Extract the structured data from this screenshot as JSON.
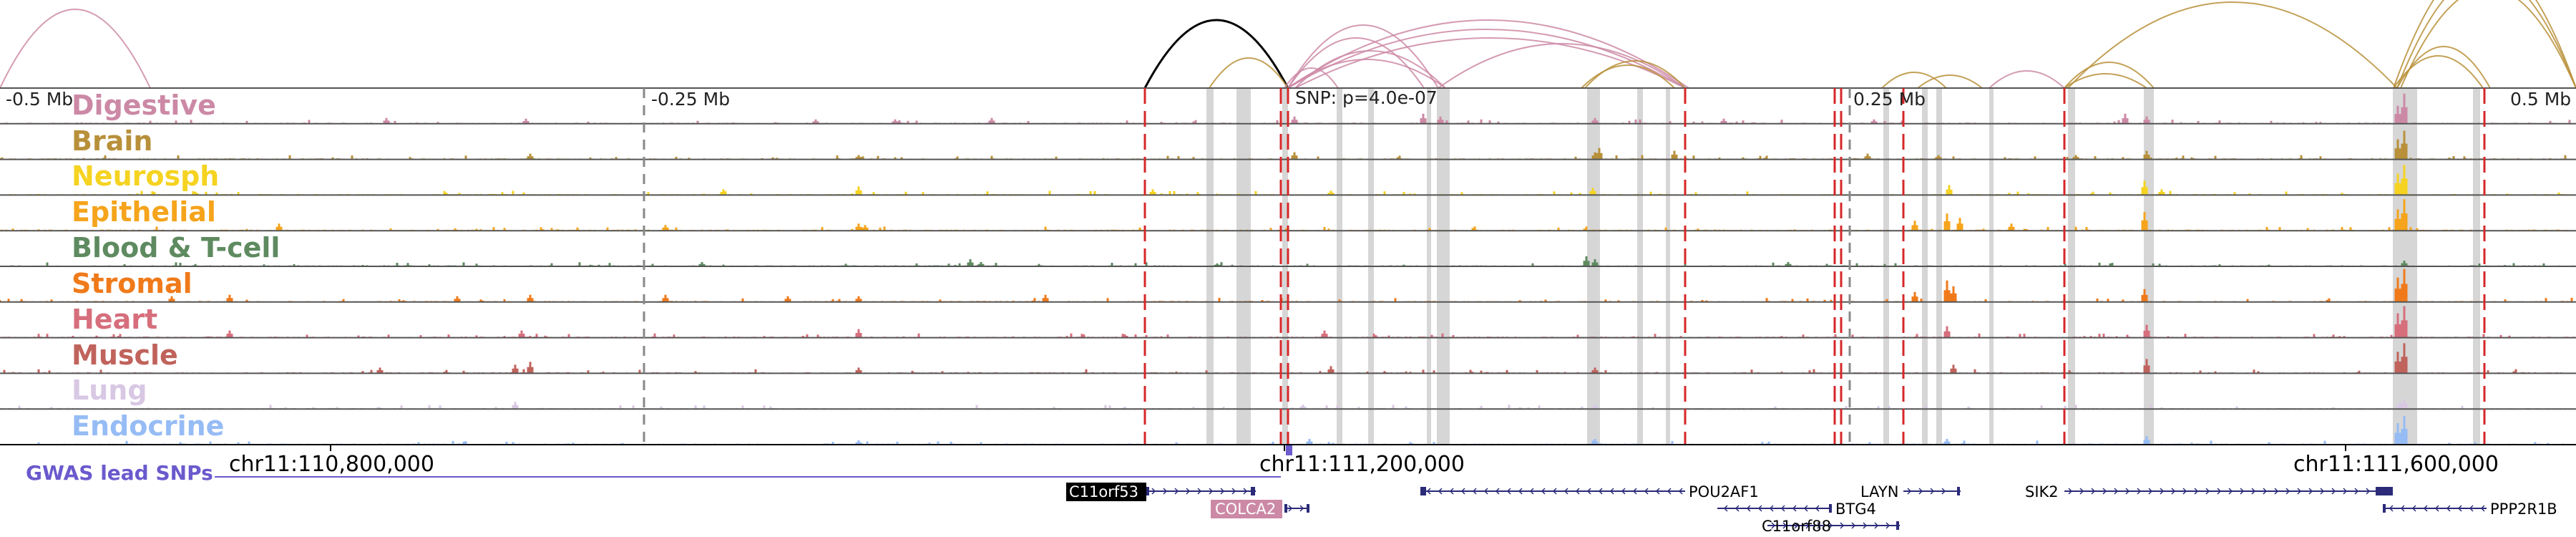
{
  "colors": {
    "snp_line": "#d62728",
    "highlight": "#c8c8c8",
    "divider": "#555555",
    "gwas": "#6a5acd",
    "gene": "#2b2b7a",
    "arc_black": "#000000"
  },
  "scale_ticks": [
    {
      "text": "-0.5 Mb"
    },
    {
      "text": "-0.25 Mb"
    },
    {
      "text": "0.25 Mb"
    },
    {
      "text": "0.5 Mb"
    }
  ],
  "snp_label": "SNP: p=4.0e-07",
  "tracks": [
    {
      "name": "Digestive",
      "color": "#cc89a6"
    },
    {
      "name": "Brain",
      "color": "#b8903a"
    },
    {
      "name": "Neurosph",
      "color": "#f5d320"
    },
    {
      "name": "Epithelial",
      "color": "#f5a41b"
    },
    {
      "name": "Blood & T-cell",
      "color": "#5e8a60"
    },
    {
      "name": "Stromal",
      "color": "#f07a1a"
    },
    {
      "name": "Heart",
      "color": "#d66e7c"
    },
    {
      "name": "Muscle",
      "color": "#c0635c"
    },
    {
      "name": "Lung",
      "color": "#d8c8e4"
    },
    {
      "name": "Endocrine",
      "color": "#96bcf5"
    }
  ],
  "coordinates": [
    {
      "text": "chr11:110,800,000"
    },
    {
      "text": "chr11:111,200,000"
    },
    {
      "text": "chr11:111,600,000"
    }
  ],
  "gwas_label": "GWAS lead SNPs",
  "genes": [
    {
      "name": "C11orf53",
      "style": "box-black"
    },
    {
      "name": "COLCA2",
      "style": "box-pink"
    },
    {
      "name": "POU2AF1",
      "style": "plain"
    },
    {
      "name": "BTG4",
      "style": "plain"
    },
    {
      "name": "C11orf88",
      "style": "plain"
    },
    {
      "name": "LAYN",
      "style": "plain"
    },
    {
      "name": "SIK2",
      "style": "plain"
    },
    {
      "name": "PPP2R1B",
      "style": "plain"
    }
  ]
}
